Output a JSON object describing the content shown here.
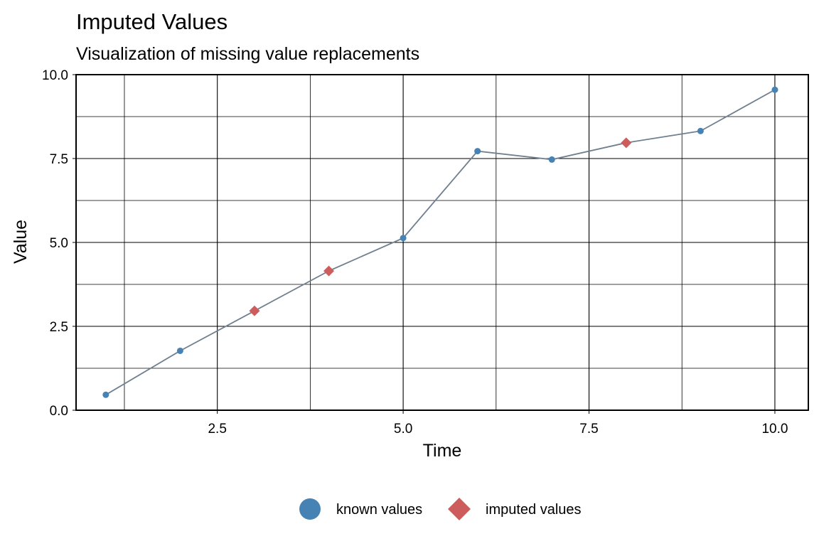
{
  "chart_data": {
    "type": "line",
    "title": "Imputed Values",
    "subtitle": "Visualization of missing value replacements",
    "xlabel": "Time",
    "ylabel": "Value",
    "xlim": [
      0.6,
      10.45
    ],
    "ylim": [
      0,
      10
    ],
    "x_ticks": [
      2.5,
      5.0,
      7.5,
      10.0
    ],
    "x_tick_labels": [
      "2.5",
      "5.0",
      "7.5",
      "10.0"
    ],
    "y_ticks": [
      0,
      2.5,
      5.0,
      7.5,
      10.0
    ],
    "y_tick_labels": [
      "0.0",
      "2.5",
      "5.0",
      "7.5",
      "10.0"
    ],
    "grid": true,
    "legend_position": "bottom",
    "series": [
      {
        "name": "known values",
        "color": "#4682B4",
        "marker": "circle",
        "points": [
          {
            "x": 1,
            "y": 0.46
          },
          {
            "x": 2,
            "y": 1.77
          },
          {
            "x": 5,
            "y": 5.13
          },
          {
            "x": 6,
            "y": 7.72
          },
          {
            "x": 7,
            "y": 7.47
          },
          {
            "x": 9,
            "y": 8.32
          },
          {
            "x": 10,
            "y": 9.55
          }
        ]
      },
      {
        "name": "imputed values",
        "color": "#CD5C5C",
        "marker": "diamond",
        "points": [
          {
            "x": 3,
            "y": 2.96
          },
          {
            "x": 4,
            "y": 4.15
          },
          {
            "x": 8,
            "y": 7.97
          }
        ]
      }
    ],
    "line": {
      "color": "#708090",
      "values": [
        {
          "x": 1,
          "y": 0.46
        },
        {
          "x": 2,
          "y": 1.77
        },
        {
          "x": 3,
          "y": 2.96
        },
        {
          "x": 4,
          "y": 4.15
        },
        {
          "x": 5,
          "y": 5.13
        },
        {
          "x": 6,
          "y": 7.72
        },
        {
          "x": 7,
          "y": 7.47
        },
        {
          "x": 8,
          "y": 7.97
        },
        {
          "x": 9,
          "y": 8.32
        },
        {
          "x": 10,
          "y": 9.55
        }
      ]
    }
  }
}
